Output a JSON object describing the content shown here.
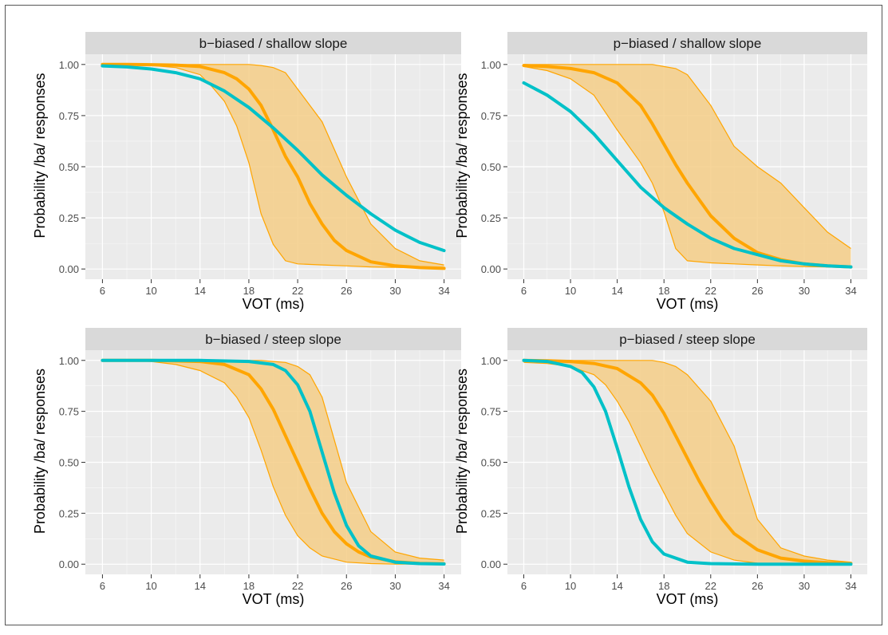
{
  "colors": {
    "panel_bg": "#EBEBEB",
    "grid_major": "#FFFFFF",
    "strip_bg": "#D9D9D9",
    "tick_text": "#4D4D4D",
    "model_line": "#FFA500",
    "model_band": "#F5CE87",
    "data_line": "#00C1C8"
  },
  "chart_data": [
    {
      "type": "line",
      "title": "b−biased / shallow slope",
      "xlabel": "VOT (ms)",
      "ylabel": "Probability /ba/ responses",
      "xlim": [
        6,
        34
      ],
      "ylim": [
        0,
        1
      ],
      "x_ticks": [
        6,
        10,
        14,
        18,
        22,
        26,
        30,
        34
      ],
      "x_tick_labels": [
        "6",
        "10",
        "14",
        "18",
        "22",
        "26",
        "30",
        "34"
      ],
      "y_ticks": [
        0,
        0.25,
        0.5,
        0.75,
        1
      ],
      "y_tick_labels": [
        "0.00",
        "0.25",
        "0.50",
        "0.75",
        "1.00"
      ],
      "series": [
        {
          "role": "band",
          "x": [
            6,
            8,
            10,
            12,
            14,
            15,
            16,
            17,
            18,
            19,
            20,
            21,
            22,
            24,
            26,
            28,
            30,
            32,
            34
          ],
          "lower": [
            1.0,
            0.999,
            0.995,
            0.985,
            0.95,
            0.89,
            0.82,
            0.7,
            0.52,
            0.27,
            0.12,
            0.04,
            0.025,
            0.02,
            0.015,
            0.01,
            0.008,
            0.005,
            0.005
          ],
          "upper": [
            1.0,
            1.0,
            1.0,
            1.0,
            1.0,
            1.0,
            1.0,
            1.0,
            1.0,
            0.995,
            0.985,
            0.96,
            0.88,
            0.72,
            0.45,
            0.22,
            0.1,
            0.04,
            0.02
          ]
        },
        {
          "role": "model",
          "x": [
            6,
            8,
            10,
            12,
            14,
            16,
            17,
            18,
            19,
            20,
            21,
            22,
            23,
            24,
            25,
            26,
            28,
            30,
            32,
            34
          ],
          "y": [
            1.0,
            1.0,
            0.999,
            0.997,
            0.99,
            0.96,
            0.93,
            0.88,
            0.8,
            0.68,
            0.55,
            0.45,
            0.32,
            0.22,
            0.14,
            0.09,
            0.035,
            0.015,
            0.007,
            0.003
          ]
        },
        {
          "role": "data",
          "x": [
            6,
            8,
            10,
            12,
            14,
            16,
            18,
            20,
            22,
            24,
            26,
            28,
            30,
            32,
            34
          ],
          "y": [
            0.993,
            0.988,
            0.978,
            0.96,
            0.93,
            0.87,
            0.79,
            0.69,
            0.58,
            0.46,
            0.36,
            0.27,
            0.19,
            0.13,
            0.09
          ]
        }
      ]
    },
    {
      "type": "line",
      "title": "p−biased / shallow slope",
      "xlabel": "VOT (ms)",
      "ylabel": "Probability /ba/ responses",
      "xlim": [
        6,
        34
      ],
      "ylim": [
        0,
        1
      ],
      "x_ticks": [
        6,
        10,
        14,
        18,
        22,
        26,
        30,
        34
      ],
      "x_tick_labels": [
        "6",
        "10",
        "14",
        "18",
        "22",
        "26",
        "30",
        "34"
      ],
      "y_ticks": [
        0,
        0.25,
        0.5,
        0.75,
        1
      ],
      "y_tick_labels": [
        "0.00",
        "0.25",
        "0.50",
        "0.75",
        "1.00"
      ],
      "series": [
        {
          "role": "band",
          "x": [
            6,
            8,
            10,
            12,
            14,
            16,
            17,
            18,
            19,
            20,
            22,
            24,
            26,
            28,
            30,
            32,
            34
          ],
          "lower": [
            0.99,
            0.97,
            0.93,
            0.85,
            0.68,
            0.52,
            0.42,
            0.28,
            0.1,
            0.04,
            0.03,
            0.025,
            0.02,
            0.015,
            0.012,
            0.01,
            0.01
          ],
          "upper": [
            1.0,
            1.0,
            1.0,
            1.0,
            1.0,
            1.0,
            1.0,
            0.99,
            0.98,
            0.95,
            0.8,
            0.6,
            0.5,
            0.42,
            0.3,
            0.18,
            0.1
          ]
        },
        {
          "role": "model",
          "x": [
            6,
            8,
            10,
            12,
            14,
            16,
            17,
            18,
            19,
            20,
            21,
            22,
            24,
            26,
            28,
            30,
            32,
            34
          ],
          "y": [
            0.995,
            0.99,
            0.98,
            0.96,
            0.91,
            0.8,
            0.71,
            0.61,
            0.51,
            0.42,
            0.34,
            0.26,
            0.15,
            0.08,
            0.045,
            0.025,
            0.015,
            0.01
          ]
        },
        {
          "role": "data",
          "x": [
            6,
            8,
            10,
            12,
            14,
            16,
            18,
            20,
            22,
            24,
            26,
            28,
            30,
            32,
            34
          ],
          "y": [
            0.91,
            0.85,
            0.77,
            0.66,
            0.53,
            0.4,
            0.3,
            0.22,
            0.15,
            0.1,
            0.07,
            0.04,
            0.025,
            0.015,
            0.01
          ]
        }
      ]
    },
    {
      "type": "line",
      "title": "b−biased / steep slope",
      "xlabel": "VOT (ms)",
      "ylabel": "Probability /ba/ responses",
      "xlim": [
        6,
        34
      ],
      "ylim": [
        0,
        1
      ],
      "x_ticks": [
        6,
        10,
        14,
        18,
        22,
        26,
        30,
        34
      ],
      "x_tick_labels": [
        "6",
        "10",
        "14",
        "18",
        "22",
        "26",
        "30",
        "34"
      ],
      "y_ticks": [
        0,
        0.25,
        0.5,
        0.75,
        1
      ],
      "y_tick_labels": [
        "0.00",
        "0.25",
        "0.50",
        "0.75",
        "1.00"
      ],
      "series": [
        {
          "role": "band",
          "x": [
            6,
            8,
            10,
            12,
            14,
            16,
            17,
            18,
            19,
            20,
            21,
            22,
            23,
            24,
            26,
            28,
            30,
            32,
            34
          ],
          "lower": [
            1.0,
            1.0,
            0.995,
            0.98,
            0.95,
            0.89,
            0.82,
            0.72,
            0.56,
            0.38,
            0.24,
            0.14,
            0.08,
            0.04,
            0.01,
            0.003,
            0.0,
            0.0,
            0.0
          ],
          "upper": [
            1.0,
            1.0,
            1.0,
            1.0,
            1.0,
            1.0,
            1.0,
            1.0,
            1.0,
            0.995,
            0.99,
            0.97,
            0.93,
            0.82,
            0.4,
            0.16,
            0.06,
            0.03,
            0.02
          ]
        },
        {
          "role": "model",
          "x": [
            6,
            10,
            14,
            16,
            18,
            19,
            20,
            21,
            22,
            23,
            24,
            25,
            26,
            27,
            28,
            30,
            32,
            34
          ],
          "y": [
            1.0,
            1.0,
            0.995,
            0.98,
            0.93,
            0.86,
            0.76,
            0.63,
            0.5,
            0.37,
            0.25,
            0.16,
            0.1,
            0.06,
            0.035,
            0.012,
            0.004,
            0.002
          ]
        },
        {
          "role": "data",
          "x": [
            6,
            10,
            14,
            18,
            20,
            21,
            22,
            23,
            24,
            25,
            26,
            27,
            28,
            30,
            32,
            34
          ],
          "y": [
            1.0,
            1.0,
            1.0,
            0.995,
            0.98,
            0.95,
            0.88,
            0.75,
            0.55,
            0.35,
            0.19,
            0.09,
            0.04,
            0.01,
            0.003,
            0.001
          ]
        }
      ]
    },
    {
      "type": "line",
      "title": "p−biased / steep slope",
      "xlabel": "VOT (ms)",
      "ylabel": "Probability /ba/ responses",
      "xlim": [
        6,
        34
      ],
      "ylim": [
        0,
        1
      ],
      "x_ticks": [
        6,
        10,
        14,
        18,
        22,
        26,
        30,
        34
      ],
      "x_tick_labels": [
        "6",
        "10",
        "14",
        "18",
        "22",
        "26",
        "30",
        "34"
      ],
      "y_ticks": [
        0,
        0.25,
        0.5,
        0.75,
        1
      ],
      "y_tick_labels": [
        "0.00",
        "0.25",
        "0.50",
        "0.75",
        "1.00"
      ],
      "series": [
        {
          "role": "band",
          "x": [
            6,
            8,
            10,
            12,
            13,
            14,
            15,
            16,
            17,
            18,
            19,
            20,
            22,
            24,
            26,
            28,
            30,
            32,
            34
          ],
          "lower": [
            0.99,
            0.985,
            0.97,
            0.93,
            0.88,
            0.8,
            0.7,
            0.58,
            0.46,
            0.35,
            0.24,
            0.15,
            0.06,
            0.02,
            0.005,
            0.0,
            0.0,
            0.0,
            0.0
          ],
          "upper": [
            1.0,
            1.0,
            1.0,
            1.0,
            1.0,
            1.0,
            1.0,
            1.0,
            1.0,
            0.99,
            0.97,
            0.93,
            0.8,
            0.58,
            0.22,
            0.08,
            0.04,
            0.02,
            0.01
          ]
        },
        {
          "role": "model",
          "x": [
            6,
            8,
            10,
            12,
            14,
            16,
            17,
            18,
            19,
            20,
            21,
            22,
            23,
            24,
            26,
            28,
            30,
            32,
            34
          ],
          "y": [
            1.0,
            0.998,
            0.995,
            0.985,
            0.96,
            0.89,
            0.83,
            0.74,
            0.63,
            0.52,
            0.41,
            0.31,
            0.22,
            0.15,
            0.07,
            0.03,
            0.015,
            0.007,
            0.004
          ]
        },
        {
          "role": "data",
          "x": [
            6,
            8,
            10,
            11,
            12,
            13,
            14,
            15,
            16,
            17,
            18,
            20,
            22,
            26,
            30,
            34
          ],
          "y": [
            1.0,
            0.995,
            0.97,
            0.94,
            0.87,
            0.75,
            0.57,
            0.38,
            0.22,
            0.11,
            0.05,
            0.01,
            0.003,
            0.0,
            0.0,
            0.0
          ]
        }
      ]
    }
  ]
}
